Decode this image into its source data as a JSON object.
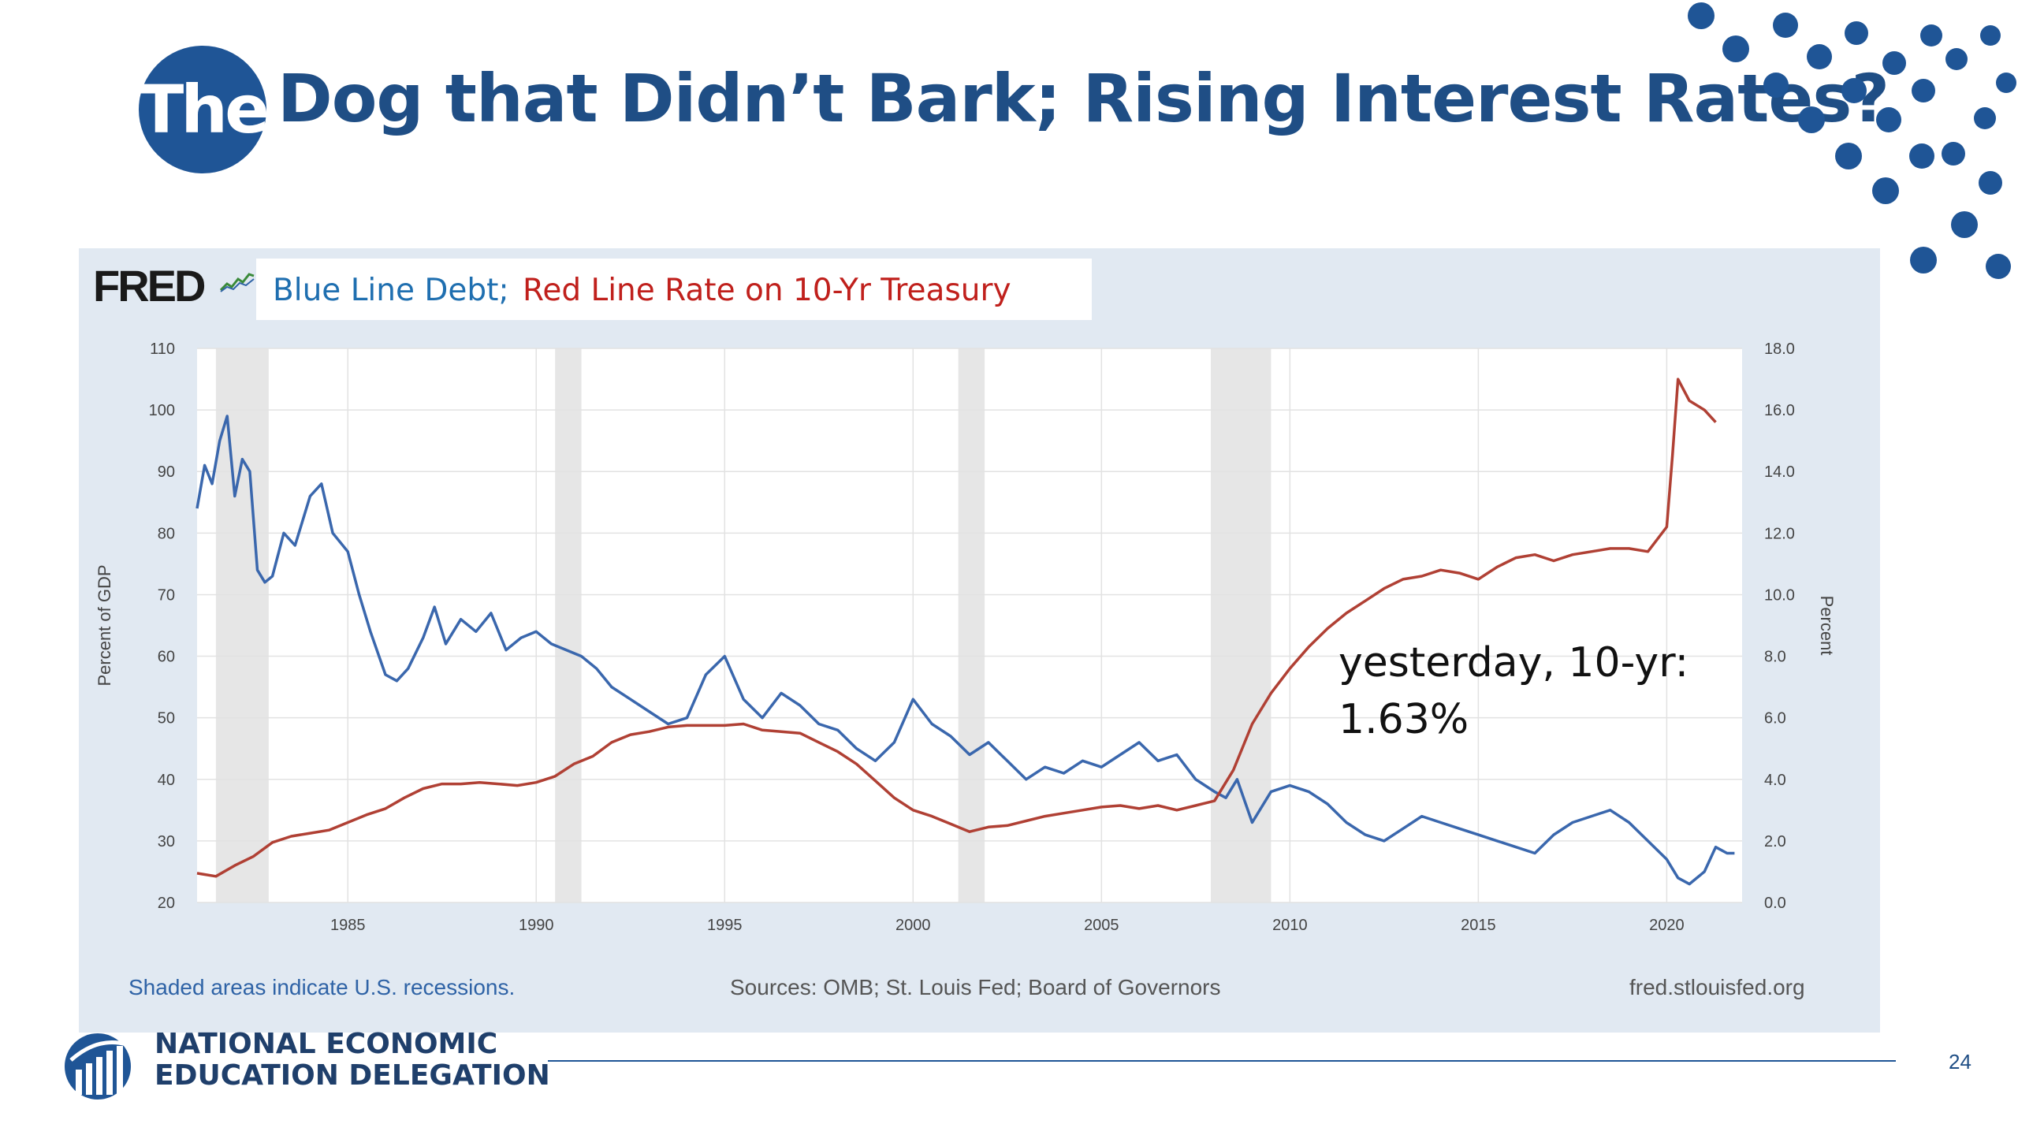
{
  "slide": {
    "title_circle": "The",
    "title": "Dog that Didn’t Bark; Rising Interest Rates?",
    "annotation_line1": "yesterday, 10-yr:",
    "annotation_line2": "1.63%",
    "org_line1": "NATIONAL ECONOMIC",
    "org_line2": "EDUCATION DELEGATION",
    "page_number": "24",
    "colors": {
      "brand": "#1f5596",
      "debt": "#3a67ad",
      "rate": "#b04034"
    }
  },
  "chart": {
    "logo": "FRED",
    "legend_blue": "Blue Line Debt;",
    "legend_red": "Red Line Rate on 10-Yr Treasury",
    "recession_note": "Shaded areas indicate U.S. recessions.",
    "sources": "Sources: OMB; St. Louis Fed; Board of Governors",
    "site": "fred.stlouisfed.org",
    "y_left_label": "Percent of GDP",
    "y_right_label": "Percent"
  },
  "chart_data": {
    "type": "line",
    "xlim": [
      1981,
      2022
    ],
    "ylim_left": [
      20,
      110
    ],
    "ylim_right": [
      0,
      18
    ],
    "x_ticks": [
      1985,
      1990,
      1995,
      2000,
      2005,
      2010,
      2015,
      2020
    ],
    "y_left_ticks": [
      "20",
      "30",
      "40",
      "50",
      "60",
      "70",
      "80",
      "90",
      "100",
      "110"
    ],
    "y_right_ticks": [
      "0.0",
      "2.0",
      "4.0",
      "6.0",
      "8.0",
      "10.0",
      "12.0",
      "14.0",
      "16.0",
      "18.0"
    ],
    "recessions": [
      [
        1981.5,
        1982.9
      ],
      [
        1990.5,
        1991.2
      ],
      [
        2001.2,
        2001.9
      ],
      [
        2007.9,
        2009.5
      ]
    ],
    "grid": true,
    "series": [
      {
        "name": "Blue Line Debt",
        "axis": "left",
        "color": "#3a67ad",
        "x": [
          1981.0,
          1981.2,
          1981.4,
          1981.6,
          1981.8,
          1982.0,
          1982.2,
          1982.4,
          1982.6,
          1982.8,
          1983.0,
          1983.3,
          1983.6,
          1984.0,
          1984.3,
          1984.6,
          1985.0,
          1985.3,
          1985.6,
          1986.0,
          1986.3,
          1986.6,
          1987.0,
          1987.3,
          1987.6,
          1988.0,
          1988.4,
          1988.8,
          1989.2,
          1989.6,
          1990.0,
          1990.4,
          1990.8,
          1991.2,
          1991.6,
          1992.0,
          1992.5,
          1993.0,
          1993.5,
          1994.0,
          1994.5,
          1995.0,
          1995.5,
          1996.0,
          1996.5,
          1997.0,
          1997.5,
          1998.0,
          1998.5,
          1999.0,
          1999.5,
          2000.0,
          2000.5,
          2001.0,
          2001.5,
          2002.0,
          2002.5,
          2003.0,
          2003.5,
          2004.0,
          2004.5,
          2005.0,
          2005.5,
          2006.0,
          2006.5,
          2007.0,
          2007.5,
          2008.0,
          2008.3,
          2008.6,
          2009.0,
          2009.5,
          2010.0,
          2010.5,
          2011.0,
          2011.5,
          2012.0,
          2012.5,
          2013.0,
          2013.5,
          2014.0,
          2014.5,
          2015.0,
          2015.5,
          2016.0,
          2016.5,
          2017.0,
          2017.5,
          2018.0,
          2018.5,
          2019.0,
          2019.5,
          2020.0,
          2020.3,
          2020.6,
          2021.0,
          2021.3,
          2021.6,
          2021.8
        ],
        "y": [
          84,
          91,
          88,
          95,
          99,
          86,
          92,
          90,
          74,
          72,
          73,
          80,
          78,
          86,
          88,
          80,
          77,
          70,
          64,
          57,
          56,
          58,
          63,
          68,
          62,
          66,
          64,
          67,
          61,
          63,
          64,
          62,
          61,
          60,
          58,
          55,
          53,
          51,
          49,
          50,
          57,
          60,
          53,
          50,
          54,
          52,
          49,
          48,
          45,
          43,
          46,
          53,
          49,
          47,
          44,
          46,
          43,
          40,
          42,
          41,
          43,
          42,
          44,
          46,
          43,
          44,
          40,
          38,
          37,
          40,
          33,
          38,
          39,
          38,
          36,
          33,
          31,
          30,
          32,
          34,
          33,
          32,
          31,
          30,
          29,
          28,
          31,
          33,
          34,
          35,
          33,
          30,
          27,
          24,
          23,
          25,
          29,
          28,
          28
        ]
      },
      {
        "name": "Red Line Rate on 10-Yr Treasury",
        "axis": "right",
        "color": "#b04034",
        "x": [
          1981.0,
          1981.5,
          1982.0,
          1982.5,
          1983.0,
          1983.5,
          1984.0,
          1984.5,
          1985.0,
          1985.5,
          1986.0,
          1986.5,
          1987.0,
          1987.5,
          1988.0,
          1988.5,
          1989.0,
          1989.5,
          1990.0,
          1990.5,
          1991.0,
          1991.5,
          1992.0,
          1992.5,
          1993.0,
          1993.5,
          1994.0,
          1994.5,
          1995.0,
          1995.5,
          1996.0,
          1996.5,
          1997.0,
          1997.5,
          1998.0,
          1998.5,
          1999.0,
          1999.5,
          2000.0,
          2000.5,
          2001.0,
          2001.5,
          2002.0,
          2002.5,
          2003.0,
          2003.5,
          2004.0,
          2004.5,
          2005.0,
          2005.5,
          2006.0,
          2006.5,
          2007.0,
          2007.5,
          2008.0,
          2008.5,
          2009.0,
          2009.5,
          2010.0,
          2010.5,
          2011.0,
          2011.5,
          2012.0,
          2012.5,
          2013.0,
          2013.5,
          2014.0,
          2014.5,
          2015.0,
          2015.5,
          2016.0,
          2016.5,
          2017.0,
          2017.5,
          2018.0,
          2018.5,
          2019.0,
          2019.5,
          2020.0,
          2020.15,
          2020.3,
          2020.6,
          2021.0,
          2021.3
        ],
        "y": [
          0.95,
          0.85,
          1.2,
          1.5,
          1.95,
          2.15,
          2.25,
          2.35,
          2.6,
          2.85,
          3.05,
          3.4,
          3.7,
          3.85,
          3.85,
          3.9,
          3.85,
          3.8,
          3.9,
          4.1,
          4.5,
          4.75,
          5.2,
          5.45,
          5.55,
          5.7,
          5.75,
          5.75,
          5.75,
          5.8,
          5.6,
          5.55,
          5.5,
          5.2,
          4.9,
          4.5,
          3.95,
          3.4,
          3.0,
          2.8,
          2.55,
          2.3,
          2.45,
          2.5,
          2.65,
          2.8,
          2.9,
          3.0,
          3.1,
          3.15,
          3.05,
          3.15,
          3.0,
          3.15,
          3.3,
          4.3,
          5.8,
          6.8,
          7.6,
          8.3,
          8.9,
          9.4,
          9.8,
          10.2,
          10.5,
          10.6,
          10.8,
          10.7,
          10.5,
          10.9,
          11.2,
          11.3,
          11.1,
          11.3,
          11.4,
          11.5,
          11.5,
          11.4,
          12.2,
          14.5,
          17.0,
          16.3,
          16.0,
          15.6
        ]
      }
    ]
  }
}
